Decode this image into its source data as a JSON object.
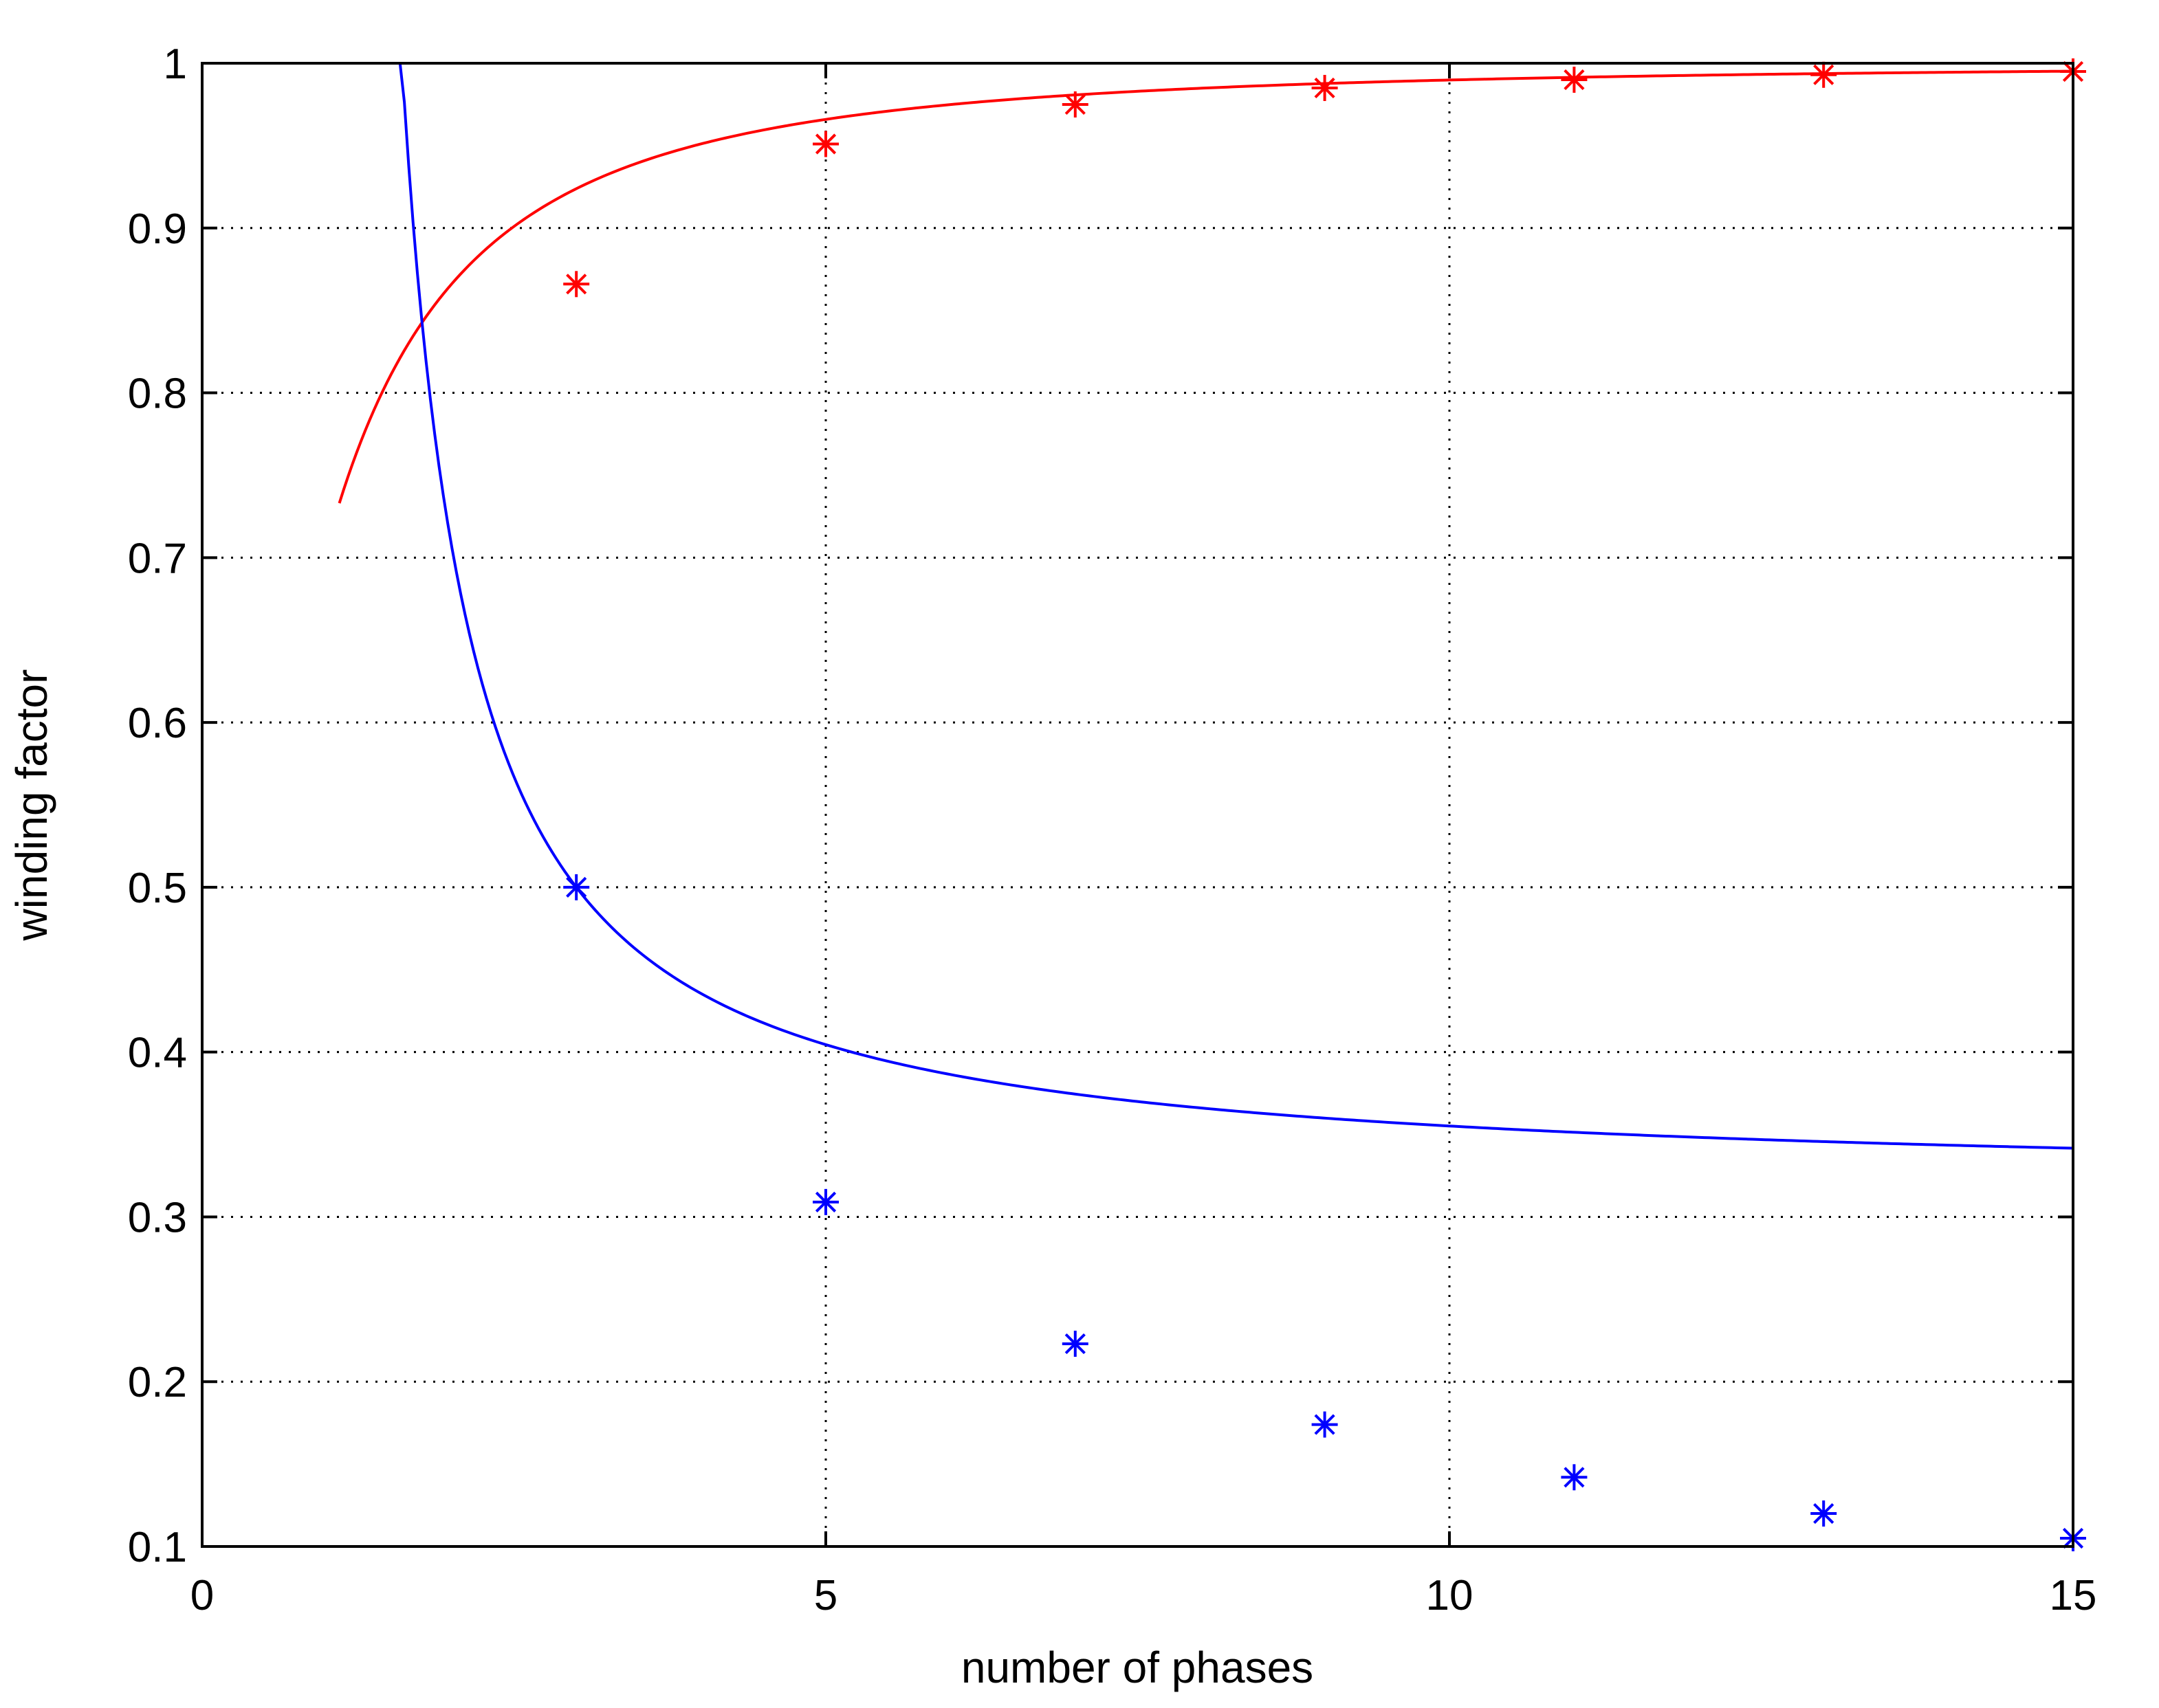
{
  "chart_data": {
    "type": "line",
    "title": "",
    "xlabel": "number of phases",
    "ylabel": "winding factor",
    "xlim": [
      0,
      15
    ],
    "ylim": [
      0.1,
      1
    ],
    "xticks": [
      0,
      5,
      10,
      15
    ],
    "yticks": [
      0.1,
      0.2,
      0.3,
      0.4,
      0.5,
      0.6,
      0.7,
      0.8,
      0.9,
      1
    ],
    "xtick_labels": [
      "0",
      "5",
      "10",
      "15"
    ],
    "ytick_labels": [
      "0.1",
      "0.2",
      "0.3",
      "0.4",
      "0.5",
      "0.6",
      "0.7",
      "0.8",
      "0.9",
      "1"
    ],
    "grid": true,
    "grid_style": "dotted",
    "legend": "none",
    "curve_x_range": [
      1.1,
      15
    ],
    "series": [
      {
        "color": "#ff0000",
        "curve": "sin(pi*m/(2*(m+1)))",
        "marker": "asterisk",
        "markers": {
          "x": [
            3,
            5,
            7,
            9,
            11,
            13,
            15
          ],
          "y": [
            0.866,
            0.951,
            0.975,
            0.985,
            0.99,
            0.993,
            0.995
          ]
        }
      },
      {
        "color": "#0000ff",
        "curve": "1/(2*(m-1)*sin(pi/(2*m)))",
        "marker": "asterisk",
        "markers": {
          "x": [
            3,
            5,
            7,
            9,
            11,
            13,
            15
          ],
          "y": [
            0.5,
            0.309,
            0.223,
            0.174,
            0.142,
            0.12,
            0.105
          ]
        }
      }
    ]
  }
}
